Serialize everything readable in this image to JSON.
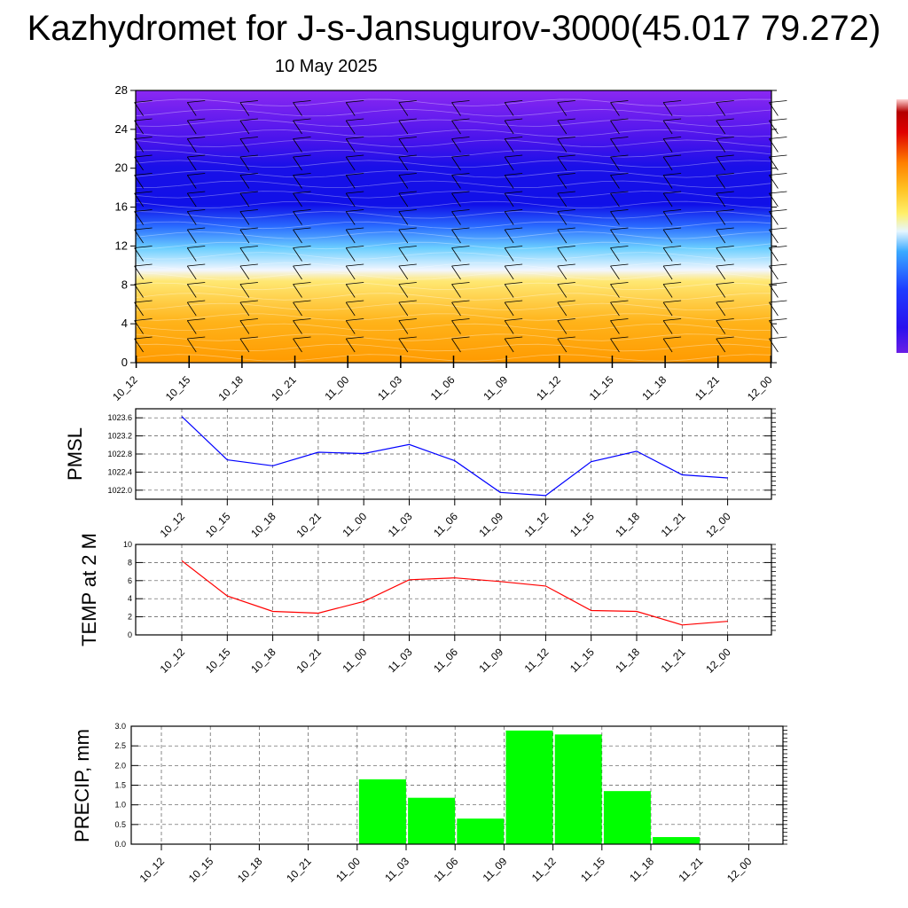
{
  "title": "Kazhydromet for J-s-Jansugurov-3000(45.017 79.272)",
  "date": "10 May 2025",
  "times": [
    "10_12",
    "10_15",
    "10_18",
    "10_21",
    "11_00",
    "11_03",
    "11_06",
    "11_09",
    "11_12",
    "11_15",
    "11_18",
    "11_21",
    "12_00"
  ],
  "colors": {
    "pmsl_line": "#0000ff",
    "temp_line": "#ff0000",
    "precip_bar": "#00ff00",
    "grid": "#555555"
  },
  "chart_data": [
    {
      "type": "heatmap",
      "description_of_field": "vertical profile with wind barbs",
      "y_ticks": [
        0,
        4,
        8,
        12,
        16,
        20,
        24,
        28
      ],
      "ylim": [
        0,
        28
      ],
      "x": [
        "10_12",
        "10_15",
        "10_18",
        "10_21",
        "11_00",
        "11_03",
        "11_06",
        "11_09",
        "11_12",
        "11_15",
        "11_18",
        "11_21",
        "12_00"
      ],
      "colorbar": [
        "#7b1fe0",
        "#3a10f0",
        "#1010e8",
        "#2a4cff",
        "#3da8ff",
        "#d8f2ff",
        "#ffe873",
        "#ffc020",
        "#ff9a00"
      ]
    },
    {
      "type": "line",
      "ylabel": "PMSL",
      "x": [
        "10_12",
        "10_15",
        "10_18",
        "10_21",
        "11_00",
        "11_03",
        "11_06",
        "11_09",
        "11_12",
        "11_15",
        "11_18",
        "11_21",
        "12_00"
      ],
      "y_ticks": [
        "1022.0",
        "1022.4",
        "1022.8",
        "1023.2",
        "1023.6"
      ],
      "ylim": [
        1021.8,
        1023.8
      ],
      "values": [
        1023.63,
        1022.67,
        1022.54,
        1022.84,
        1022.81,
        1023.01,
        1022.65,
        1021.95,
        1021.88,
        1022.63,
        1022.86,
        1022.34,
        1022.27
      ]
    },
    {
      "type": "line",
      "ylabel": "TEMP at 2 M",
      "x": [
        "10_12",
        "10_15",
        "10_18",
        "10_21",
        "11_00",
        "11_03",
        "11_06",
        "11_09",
        "11_12",
        "11_15",
        "11_18",
        "11_21",
        "12_00"
      ],
      "y_ticks": [
        "0",
        "2",
        "4",
        "6",
        "8",
        "10"
      ],
      "ylim": [
        0,
        10
      ],
      "values": [
        8.2,
        4.3,
        2.6,
        2.4,
        3.7,
        6.1,
        6.3,
        5.9,
        5.4,
        2.7,
        2.6,
        1.1,
        1.5
      ]
    },
    {
      "type": "bar",
      "ylabel": "PRECIP, mm",
      "categories": [
        "10_12",
        "10_15",
        "10_18",
        "10_21",
        "11_00",
        "11_03",
        "11_06",
        "11_09",
        "11_12",
        "11_15",
        "11_18",
        "11_21",
        "12_00"
      ],
      "y_ticks": [
        "0.0",
        "0.5",
        "1.0",
        "1.5",
        "2.0",
        "2.5",
        "3.0"
      ],
      "ylim": [
        0,
        3.0
      ],
      "values": [
        0,
        0,
        0,
        0,
        1.65,
        1.18,
        0.65,
        2.89,
        2.79,
        1.35,
        0.18,
        0,
        0
      ]
    }
  ]
}
